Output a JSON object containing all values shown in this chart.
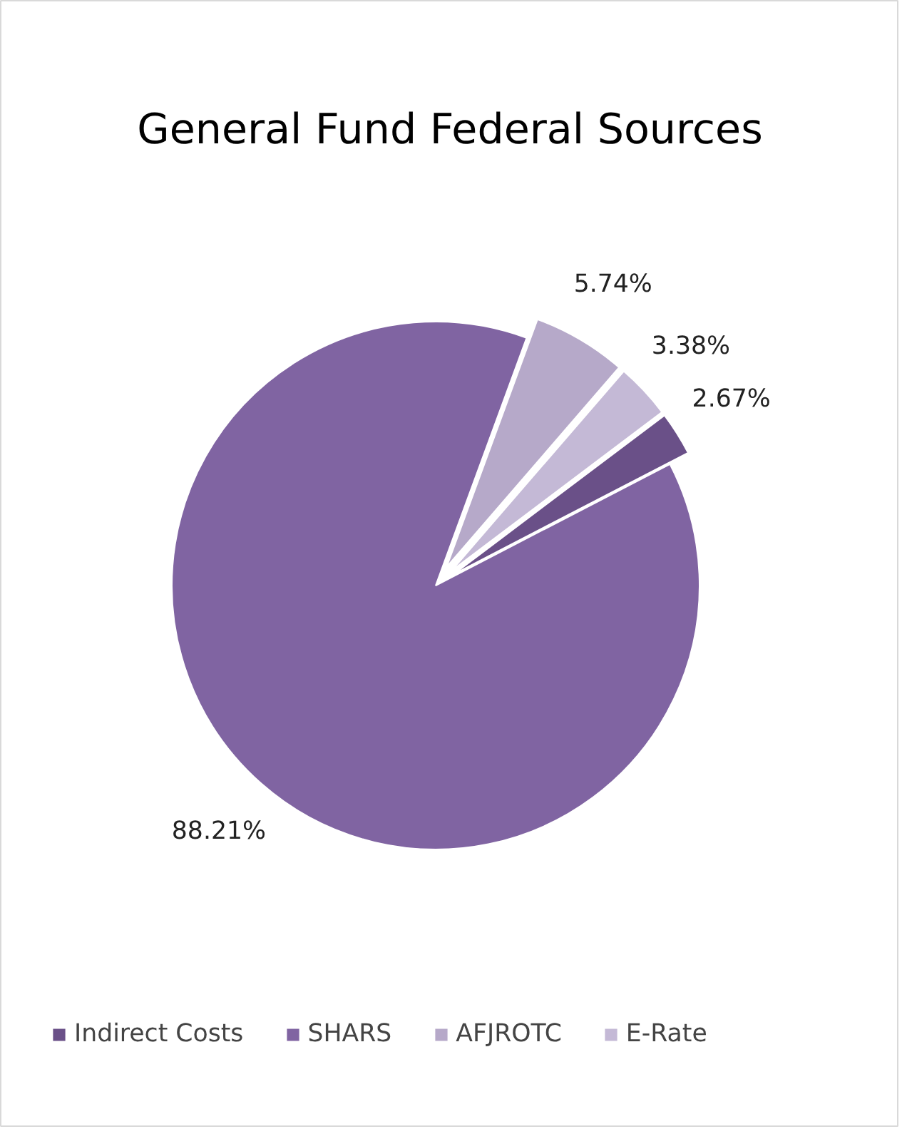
{
  "chart_data": {
    "type": "pie",
    "title": "General Fund Federal Sources",
    "categories": [
      "Indirect Costs",
      "SHARS",
      "AFJROTC",
      "E-Rate"
    ],
    "values": [
      2.67,
      88.21,
      5.74,
      3.38
    ],
    "colors": [
      "#6a5088",
      "#8064a2",
      "#b6a9c9",
      "#c4b9d6"
    ],
    "value_labels": [
      "2.67%",
      "88.21%",
      "5.74%",
      "3.38%"
    ],
    "legend": "bottom"
  }
}
